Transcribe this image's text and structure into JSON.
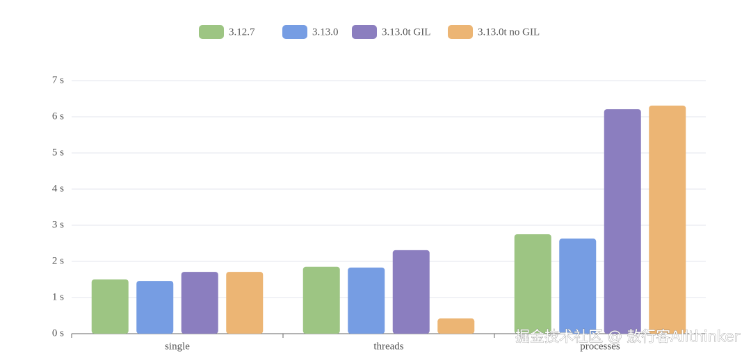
{
  "chart_data": {
    "type": "bar",
    "categories": [
      "single",
      "threads",
      "processes"
    ],
    "series": [
      {
        "name": "3.12.7",
        "color": "#9dc583",
        "values": [
          1.5,
          1.85,
          2.75
        ]
      },
      {
        "name": "3.13.0",
        "color": "#769de3",
        "values": [
          1.46,
          1.83,
          2.63
        ]
      },
      {
        "name": "3.13.0t GIL",
        "color": "#8b7ebf",
        "values": [
          1.71,
          2.31,
          6.21
        ]
      },
      {
        "name": "3.13.0t no GIL",
        "color": "#ecb574",
        "values": [
          1.71,
          0.42,
          6.31
        ]
      }
    ],
    "ylim": [
      0,
      7
    ],
    "yticks": [
      {
        "value": 0,
        "label": "0 s"
      },
      {
        "value": 1,
        "label": "1 s"
      },
      {
        "value": 2,
        "label": "2 s"
      },
      {
        "value": 3,
        "label": "3 s"
      },
      {
        "value": 4,
        "label": "4 s"
      },
      {
        "value": 5,
        "label": "5 s"
      },
      {
        "value": 6,
        "label": "6 s"
      },
      {
        "value": 7,
        "label": "7 s"
      }
    ],
    "grid": true,
    "legend": "top",
    "watermark": "掘金技术社区 @ 敖行客Allthinker"
  }
}
